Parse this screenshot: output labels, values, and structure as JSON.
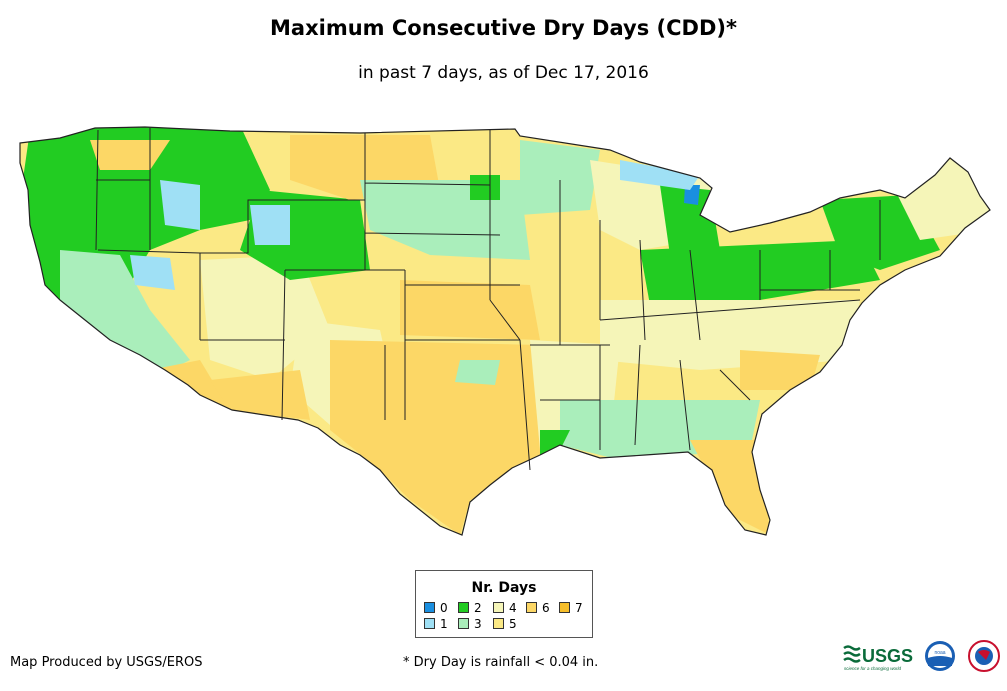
{
  "title": "Maximum Consecutive Dry Days (CDD)*",
  "subtitle": "in past 7 days, as of Dec 17, 2016",
  "legend": {
    "title": "Nr. Days",
    "items": [
      {
        "label": "0",
        "color": "#1a8fe0"
      },
      {
        "label": "1",
        "color": "#9fe0f5"
      },
      {
        "label": "2",
        "color": "#22cc22"
      },
      {
        "label": "3",
        "color": "#aaeebb"
      },
      {
        "label": "4",
        "color": "#f5f5b8"
      },
      {
        "label": "5",
        "color": "#fbe985"
      },
      {
        "label": "6",
        "color": "#fcd766"
      },
      {
        "label": "7",
        "color": "#f6be2a"
      }
    ]
  },
  "credit": "Map Produced by USGS/EROS",
  "footnote": "* Dry Day is rainfall < 0.04 in.",
  "logos": {
    "usgs": "USGS",
    "usgs_tagline": "science for a changing world",
    "noaa": "noaa"
  }
}
